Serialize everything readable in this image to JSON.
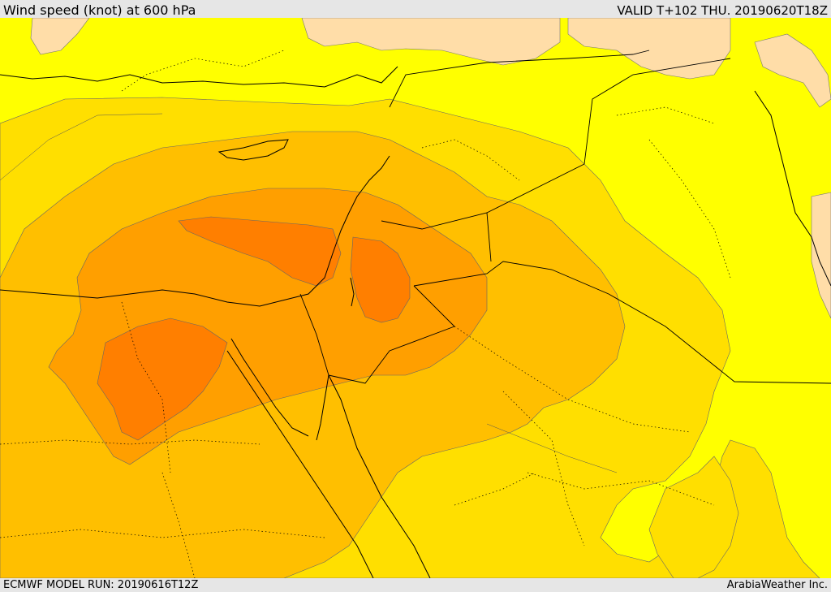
{
  "header": {
    "title": "Wind speed (knot) at 600 hPa",
    "valid_time": "VALID T+102 THU. 20190620T18Z"
  },
  "footer": {
    "model_run": "ECMWF MODEL RUN: 20190616T12Z",
    "credit": "ArabiaWeather Inc."
  },
  "map": {
    "variable": "wind speed",
    "units": "knot",
    "level_hPa": 600,
    "colors": {
      "background_band": "#ffff00",
      "band_1": "#ffdf00",
      "band_2": "#ffbf00",
      "band_3": "#ff9f00",
      "band_4": "#ff7f00",
      "light_band": "#ffdda8",
      "contour_line": "#555555",
      "boundary_line": "#000000"
    }
  }
}
